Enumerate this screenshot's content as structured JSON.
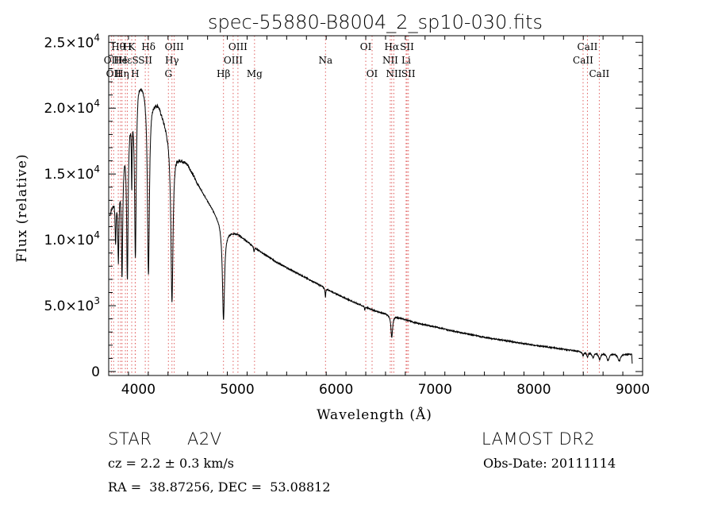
{
  "chart_data": {
    "type": "line",
    "title": "spec-55880-B8004_2_sp10-030.fits",
    "xlabel": "Wavelength (Å)",
    "ylabel": "Flux (relative)",
    "xlim": [
      3700,
      9100
    ],
    "ylim": [
      -300,
      25500
    ],
    "x_ticks": [
      {
        "value": 4000,
        "label": "4000"
      },
      {
        "value": 5000,
        "label": "5000"
      },
      {
        "value": 6000,
        "label": "6000"
      },
      {
        "value": 7000,
        "label": "7000"
      },
      {
        "value": 8000,
        "label": "8000"
      },
      {
        "value": 9000,
        "label": "9000"
      }
    ],
    "y_ticks": [
      {
        "value": 0,
        "mant": "0",
        "exp": ""
      },
      {
        "value": 5000,
        "mant": "5.0×10",
        "exp": "3"
      },
      {
        "value": 10000,
        "mant": "1.0×10",
        "exp": "4"
      },
      {
        "value": 15000,
        "mant": "1.5×10",
        "exp": "4"
      },
      {
        "value": 20000,
        "mant": "2.0×10",
        "exp": "4"
      },
      {
        "value": 25000,
        "mant": "2.5×10",
        "exp": "4"
      }
    ],
    "continuum": {
      "x": [
        3710,
        3800,
        3900,
        4000,
        4100,
        4150,
        4200,
        4300,
        4400,
        4500,
        4600,
        4700,
        4800,
        4900,
        5000,
        5200,
        5400,
        5600,
        5800,
        6000,
        6200,
        6400,
        6600,
        6800,
        7000,
        7200,
        7500,
        8000,
        8500,
        9000
      ],
      "y": [
        12000,
        14500,
        19500,
        22500,
        21500,
        20800,
        20500,
        18300,
        16500,
        15800,
        14300,
        13000,
        11800,
        10700,
        10500,
        9300,
        8300,
        7500,
        6700,
        5900,
        5200,
        4600,
        4200,
        3700,
        3400,
        3050,
        2600,
        2000,
        1500,
        1300
      ]
    },
    "absorption_lines": [
      {
        "center": 3770,
        "depth": 3500,
        "width": 6
      },
      {
        "center": 3798,
        "depth": 5500,
        "width": 7
      },
      {
        "center": 3835,
        "depth": 8500,
        "width": 8
      },
      {
        "center": 3889,
        "depth": 11500,
        "width": 9
      },
      {
        "center": 3933,
        "depth": 5500,
        "width": 4
      },
      {
        "center": 3970,
        "depth": 12500,
        "width": 10
      },
      {
        "center": 4102,
        "depth": 14000,
        "width": 12
      },
      {
        "center": 4340,
        "depth": 12200,
        "width": 13
      },
      {
        "center": 4861,
        "depth": 7200,
        "width": 13
      },
      {
        "center": 5170,
        "depth": 400,
        "width": 4
      },
      {
        "center": 5892,
        "depth": 700,
        "width": 4
      },
      {
        "center": 6290,
        "depth": 300,
        "width": 3
      },
      {
        "center": 6563,
        "depth": 1700,
        "width": 10
      },
      {
        "center": 8498,
        "depth": 300,
        "width": 8
      },
      {
        "center": 8542,
        "depth": 350,
        "width": 8
      },
      {
        "center": 8598,
        "depth": 400,
        "width": 12
      },
      {
        "center": 8665,
        "depth": 500,
        "width": 12
      },
      {
        "center": 8750,
        "depth": 550,
        "width": 14
      },
      {
        "center": 8863,
        "depth": 550,
        "width": 16
      }
    ],
    "line_markers": [
      {
        "wave": 3727,
        "label": "OII",
        "row": 2
      },
      {
        "wave": 3750,
        "label": "OII",
        "row": 3
      },
      {
        "wave": 3797,
        "label": "Hθ",
        "row": 1
      },
      {
        "wave": 3820,
        "label": "He",
        "row": 2
      },
      {
        "wave": 3835,
        "label": "Hη",
        "row": 3
      },
      {
        "wave": 3869,
        "label": "Hε",
        "row": 2
      },
      {
        "wave": 3889,
        "label": "H",
        "row": 1
      },
      {
        "wave": 3933,
        "label": "K",
        "row": 1
      },
      {
        "wave": 3968,
        "label": "H",
        "row": 3
      },
      {
        "wave": 3970,
        "label": "S",
        "row": 2
      },
      {
        "wave": 4070,
        "label": "SII",
        "row": 2
      },
      {
        "wave": 4102,
        "label": "Hδ",
        "row": 1
      },
      {
        "wave": 4304,
        "label": "G",
        "row": 3
      },
      {
        "wave": 4340,
        "label": "Hγ",
        "row": 2
      },
      {
        "wave": 4363,
        "label": "OIII",
        "row": 1
      },
      {
        "wave": 4861,
        "label": "Hβ",
        "row": 3
      },
      {
        "wave": 4959,
        "label": "OIII",
        "row": 2
      },
      {
        "wave": 5007,
        "label": "OIII",
        "row": 1
      },
      {
        "wave": 5175,
        "label": "Mg",
        "row": 3
      },
      {
        "wave": 5893,
        "label": "Na",
        "row": 2
      },
      {
        "wave": 6300,
        "label": "OI",
        "row": 1
      },
      {
        "wave": 6364,
        "label": "OI",
        "row": 3
      },
      {
        "wave": 6548,
        "label": "NII",
        "row": 2
      },
      {
        "wave": 6563,
        "label": "Hα",
        "row": 1
      },
      {
        "wave": 6584,
        "label": "NII",
        "row": 3
      },
      {
        "wave": 6708,
        "label": "Li",
        "row": 2
      },
      {
        "wave": 6717,
        "label": "SII",
        "row": 1
      },
      {
        "wave": 6731,
        "label": "SII",
        "row": 3
      },
      {
        "wave": 8498,
        "label": "CaII",
        "row": 2
      },
      {
        "wave": 8542,
        "label": "CaII",
        "row": 1
      },
      {
        "wave": 8662,
        "label": "CaII",
        "row": 3
      }
    ],
    "colors": {
      "spectrum": "#000000",
      "markers": "#e06060",
      "axes": "#000000"
    }
  },
  "info": {
    "object_class": "STAR",
    "subclass": "A2V",
    "redshift": "cz = 2.2 ± 0.3 km/s",
    "coords": "RA =  38.87256, DEC =  53.08812",
    "survey": "LAMOST DR2",
    "obs_date": "Obs-Date: 20111114"
  }
}
